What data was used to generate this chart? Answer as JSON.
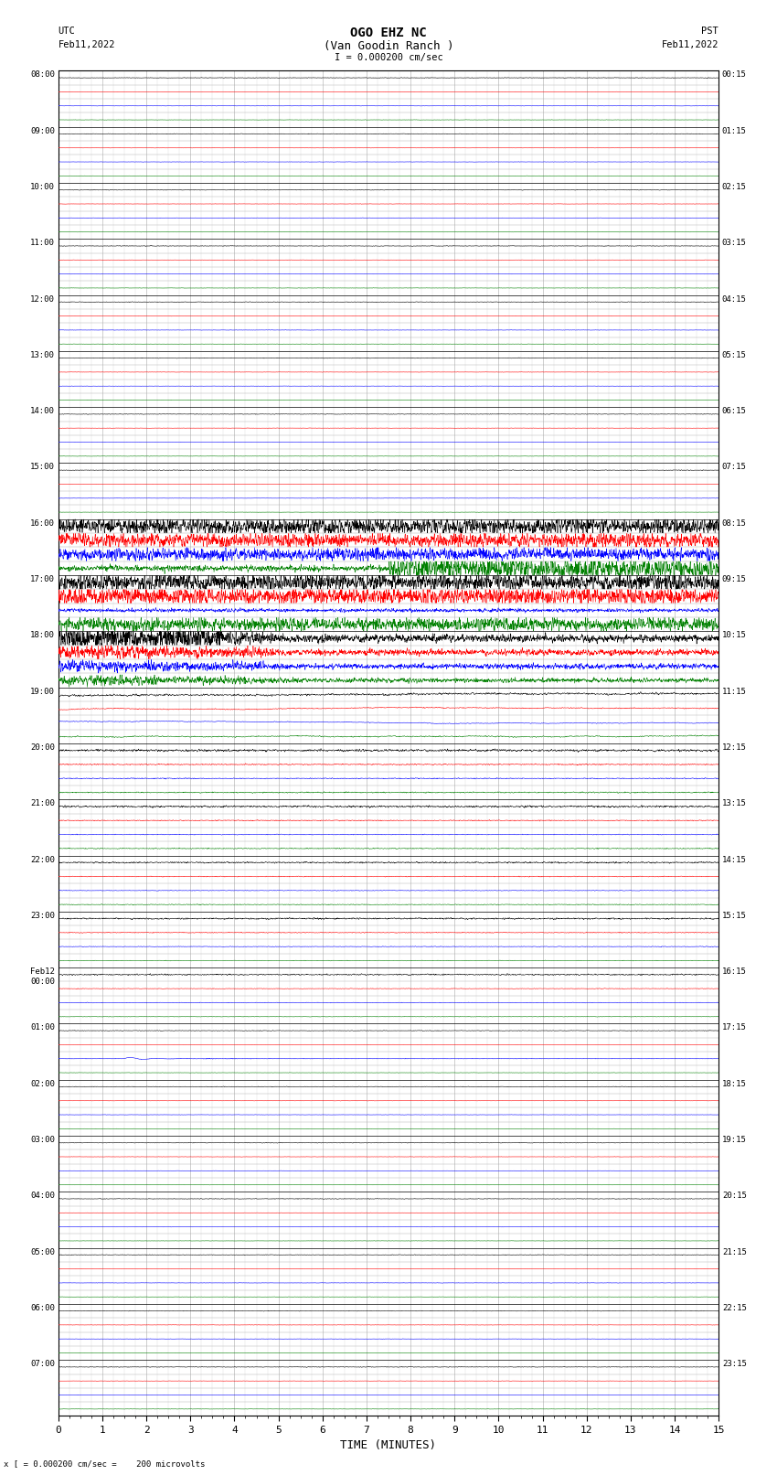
{
  "title_line1": "OGO EHZ NC",
  "title_line2": "(Van Goodin Ranch )",
  "title_scale": "I = 0.000200 cm/sec",
  "left_top_label": "UTC",
  "left_date_label": "Feb11,2022",
  "right_top_label": "PST",
  "right_date_label": "Feb11,2022",
  "bottom_label": "TIME (MINUTES)",
  "bottom_note": "x [ = 0.000200 cm/sec =    200 microvolts",
  "utc_times": [
    "08:00",
    "09:00",
    "10:00",
    "11:00",
    "12:00",
    "13:00",
    "14:00",
    "15:00",
    "16:00",
    "17:00",
    "18:00",
    "19:00",
    "20:00",
    "21:00",
    "22:00",
    "23:00",
    "Feb12\n00:00",
    "01:00",
    "02:00",
    "03:00",
    "04:00",
    "05:00",
    "06:00",
    "07:00"
  ],
  "pst_times": [
    "00:15",
    "01:15",
    "02:15",
    "03:15",
    "04:15",
    "05:15",
    "06:15",
    "07:15",
    "08:15",
    "09:15",
    "10:15",
    "11:15",
    "12:15",
    "13:15",
    "14:15",
    "15:15",
    "16:15",
    "17:15",
    "18:15",
    "19:15",
    "20:15",
    "21:15",
    "22:15",
    "23:15"
  ],
  "num_rows": 24,
  "minutes_per_row": 15,
  "background_color": "#ffffff",
  "grid_color": "#aaaaaa",
  "trace_colors": [
    "black",
    "red",
    "blue",
    "green"
  ],
  "figsize": [
    8.5,
    16.13
  ],
  "dpi": 100
}
